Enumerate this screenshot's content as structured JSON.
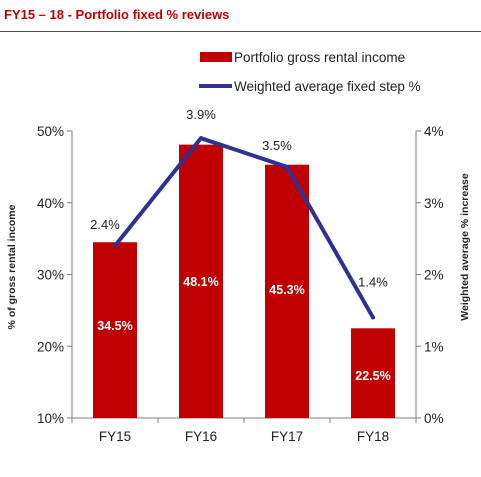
{
  "title": "FY15 – 18 - Portfolio fixed % reviews",
  "colors": {
    "title": "#c00000",
    "bar": "#c00000",
    "line": "#2e3192",
    "text": "#222222",
    "axis": "#7f7f7f"
  },
  "chart_data": {
    "type": "bar+line",
    "categories": [
      "FY15",
      "FY16",
      "FY17",
      "FY18"
    ],
    "series": [
      {
        "name": "Portfolio gross rental income",
        "type": "bar",
        "axis": "left",
        "values": [
          34.5,
          48.1,
          45.3,
          22.5
        ],
        "labels": [
          "34.5%",
          "48.1%",
          "45.3%",
          "22.5%"
        ]
      },
      {
        "name": "Weighted average fixed step %",
        "type": "line",
        "axis": "right",
        "values": [
          2.4,
          3.9,
          3.5,
          1.4
        ],
        "labels": [
          "2.4%",
          "3.9%",
          "3.5%",
          "1.4%"
        ]
      }
    ],
    "ylabel": "% of gross rental income",
    "y2label": "Weighted average % increase",
    "ylim": [
      10,
      50
    ],
    "y2lim": [
      0,
      4
    ],
    "yticks": [
      10,
      20,
      30,
      40,
      50
    ],
    "yticklabels": [
      "10%",
      "20%",
      "30%",
      "40%",
      "50%"
    ],
    "y2ticks": [
      0,
      1,
      2,
      3,
      4
    ],
    "y2ticklabels": [
      "0%",
      "1%",
      "2%",
      "3%",
      "4%"
    ],
    "legend": "top-right",
    "grid": false
  }
}
